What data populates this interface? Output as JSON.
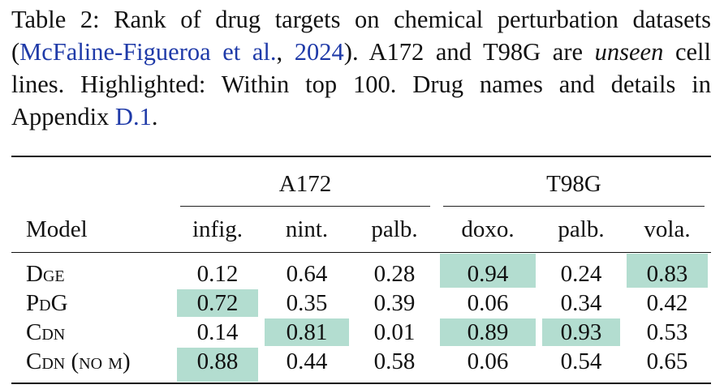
{
  "caption": {
    "label": "Table 2:",
    "text_1": " Rank of drug targets on chemical perturbation datasets (",
    "citation_authors": "McFaline-Figueroa et al.",
    "citation_sep": ", ",
    "citation_year": "2024",
    "text_2": "). A172 and T98G are ",
    "emphasis": "unseen",
    "text_3": " cell lines. Highlighted: Within top 100. Drug names and details in Appendix ",
    "appendix_ref": "D.1",
    "text_4": "."
  },
  "table": {
    "groups": [
      "A172",
      "T98G"
    ],
    "columns": [
      "Model",
      "infig.",
      "nint.",
      "palb.",
      "doxo.",
      "palb.",
      "vola."
    ],
    "rows": [
      {
        "model": "Dge",
        "values": [
          "0.12",
          "0.64",
          "0.28",
          "0.94",
          "0.24",
          "0.83"
        ],
        "highlighted": [
          false,
          false,
          false,
          true,
          false,
          true
        ]
      },
      {
        "model": "PdG",
        "values": [
          "0.72",
          "0.35",
          "0.39",
          "0.06",
          "0.34",
          "0.42"
        ],
        "highlighted": [
          true,
          false,
          false,
          false,
          false,
          false
        ]
      },
      {
        "model": "Cdn",
        "values": [
          "0.14",
          "0.81",
          "0.01",
          "0.89",
          "0.93",
          "0.53"
        ],
        "highlighted": [
          false,
          true,
          false,
          true,
          true,
          false
        ]
      },
      {
        "model": "Cdn (no μ)",
        "values": [
          "0.88",
          "0.44",
          "0.58",
          "0.06",
          "0.54",
          "0.65"
        ],
        "highlighted": [
          true,
          false,
          false,
          false,
          false,
          false
        ]
      }
    ],
    "highlight_color": "#b3ddd0"
  }
}
